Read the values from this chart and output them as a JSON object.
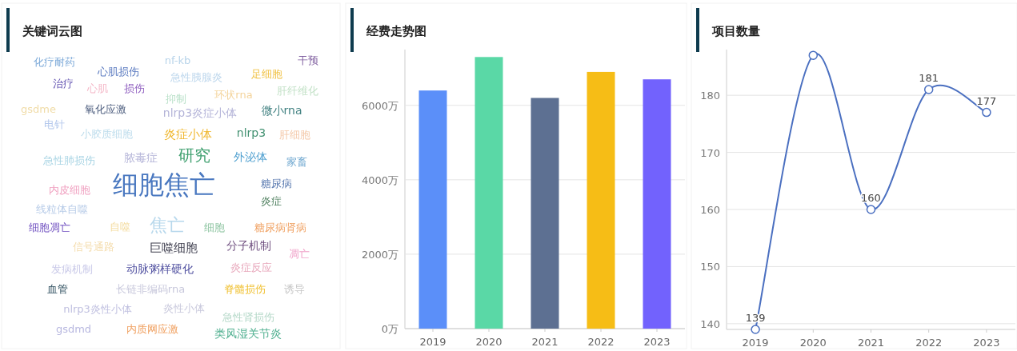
{
  "chart_data": [
    {
      "type": "other",
      "title": "关键词云图",
      "annotations": [
        "化疗耐药",
        "nf-kb",
        "干预",
        "心肌损伤",
        "急性胰腺炎",
        "足细胞",
        "治疗",
        "心肌",
        "损伤",
        "抑制",
        "环状rna",
        "肝纤维化",
        "gsdme",
        "氧化应激",
        "nlrp3炎症小体",
        "微小rna",
        "电针",
        "小胶质细胞",
        "炎症小体",
        "nlrp3",
        "肝细胞",
        "急性肺损伤",
        "脓毒症",
        "研究",
        "外泌体",
        "家畜",
        "细胞焦亡",
        "内皮细胞",
        "糖尿病",
        "炎症",
        "线粒体自噬",
        "细胞凋亡",
        "自噬",
        "焦亡",
        "细胞",
        "糖尿病肾病",
        "信号通路",
        "巨噬细胞",
        "分子机制",
        "凋亡",
        "发病机制",
        "动脉粥样硬化",
        "炎症反应",
        "血管",
        "长链非编码rna",
        "脊髓损伤",
        "诱导",
        "nlrp3炎性小体",
        "炎性小体",
        "急性肾损伤",
        "gsdmd",
        "内质网应激",
        "类风湿关节炎"
      ]
    },
    {
      "type": "bar",
      "title": "经费走势图",
      "categories": [
        "2019",
        "2020",
        "2021",
        "2022",
        "2023"
      ],
      "values": [
        6400,
        7300,
        6200,
        6900,
        6700
      ],
      "colors": [
        "#5b8ff9",
        "#5ad8a6",
        "#5d7092",
        "#f6bd16",
        "#7262fd"
      ],
      "ylim": [
        0,
        7500
      ],
      "yticks": [
        {
          "value": 0,
          "label": "0万"
        },
        {
          "value": 2000,
          "label": "2000万"
        },
        {
          "value": 4000,
          "label": "4000万"
        },
        {
          "value": 6000,
          "label": "6000万"
        }
      ],
      "grid": "y"
    },
    {
      "type": "line",
      "title": "项目数量",
      "categories": [
        "2019",
        "2020",
        "2021",
        "2022",
        "2023"
      ],
      "values": [
        139,
        187,
        160,
        181,
        177
      ],
      "value_labels": [
        "139",
        null,
        "160",
        "181",
        "177"
      ],
      "color": "#4a6fc0",
      "ylim": [
        139,
        188
      ],
      "yticks": [
        140,
        150,
        160,
        170,
        180
      ],
      "grid": "y",
      "marker": "circle"
    }
  ]
}
